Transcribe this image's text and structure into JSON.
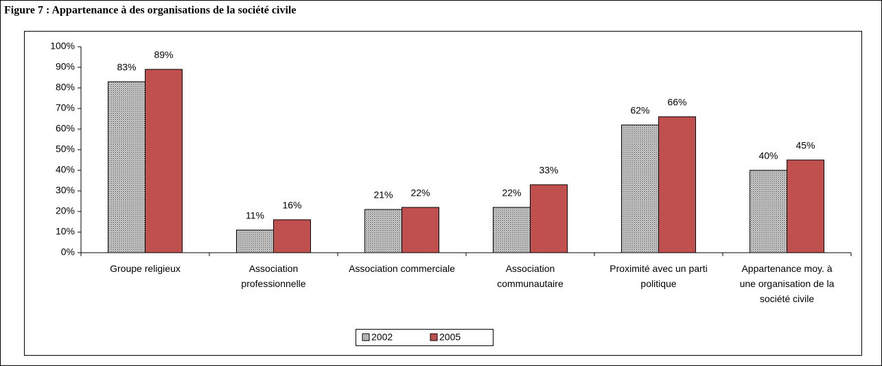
{
  "chart_data": {
    "type": "bar",
    "title": "Figure 7 : Appartenance à des organisations de la société civile",
    "categories": [
      "Groupe religieux",
      "Association\nprofessionnelle",
      "Association commerciale",
      "Association\ncommunautaire",
      "Proximité avec un parti\npolitique",
      "Appartenance moy. à\nune organisation de la\nsociété civile"
    ],
    "series": [
      {
        "name": "2002",
        "color": "#8a8a8a",
        "pattern": "crosshatch",
        "values": [
          83,
          11,
          21,
          22,
          62,
          40
        ],
        "value_labels": [
          "83%",
          "11%",
          "21%",
          "22%",
          "62%",
          "40%"
        ]
      },
      {
        "name": "2005",
        "color": "#c0504d",
        "values": [
          89,
          16,
          22,
          33,
          66,
          45
        ],
        "value_labels": [
          "89%",
          "16%",
          "22%",
          "33%",
          "66%",
          "45%"
        ]
      }
    ],
    "ylim": [
      0,
      100
    ],
    "yticks": [
      {
        "value": 0,
        "label": "0%"
      },
      {
        "value": 10,
        "label": "10%"
      },
      {
        "value": 20,
        "label": "20%"
      },
      {
        "value": 30,
        "label": "30%"
      },
      {
        "value": 40,
        "label": "40%"
      },
      {
        "value": 50,
        "label": "50%"
      },
      {
        "value": 60,
        "label": "60%"
      },
      {
        "value": 70,
        "label": "70%"
      },
      {
        "value": 80,
        "label": "80%"
      },
      {
        "value": 90,
        "label": "90%"
      },
      {
        "value": 100,
        "label": "100%"
      }
    ],
    "grid": false,
    "legend": "bottom"
  }
}
